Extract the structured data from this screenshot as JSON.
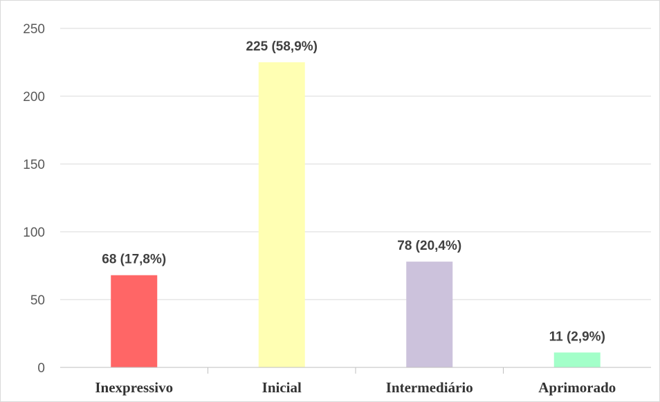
{
  "chart_data": {
    "type": "bar",
    "title": "",
    "xlabel": "",
    "ylabel": "",
    "categories": [
      "Inexpressivo",
      "Inicial",
      "Intermediário",
      "Aprimorado"
    ],
    "values": [
      68,
      225,
      78,
      11
    ],
    "data_labels": [
      "68 (17,8%)",
      "225 (58,9%)",
      "78 (20,4%)",
      "11 (2,9%)"
    ],
    "colors": [
      "#ff6666",
      "#ffffb3",
      "#ccc2dc",
      "#a3ffc9"
    ],
    "ylim": [
      0,
      250
    ],
    "yticks": [
      0,
      50,
      100,
      150,
      200,
      250
    ],
    "grid": true,
    "legend": "none"
  }
}
